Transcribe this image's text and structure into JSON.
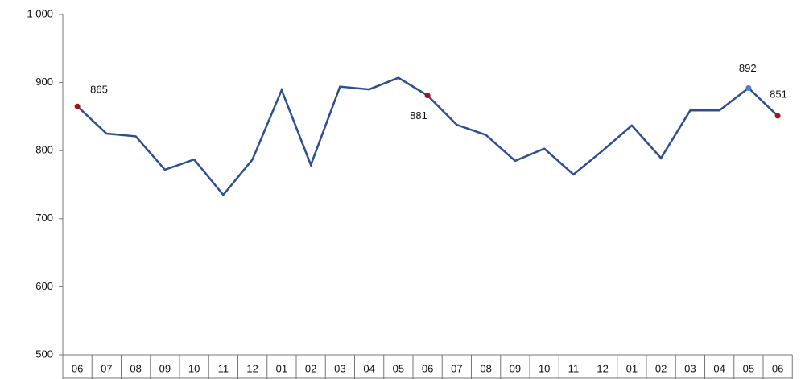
{
  "chart_data": {
    "type": "line",
    "categories": [
      "06",
      "07",
      "08",
      "09",
      "10",
      "11",
      "12",
      "01",
      "02",
      "03",
      "04",
      "05",
      "06",
      "07",
      "08",
      "09",
      "10",
      "11",
      "12",
      "01",
      "02",
      "03",
      "04",
      "05",
      "06"
    ],
    "values": [
      865,
      825,
      821,
      772,
      787,
      735,
      787,
      889,
      779,
      894,
      890,
      907,
      881,
      838,
      823,
      785,
      803,
      765,
      800,
      837,
      789,
      859,
      859,
      892,
      851
    ],
    "color": "#2e4f8f",
    "point_colors": [
      "#a0141e",
      null,
      null,
      null,
      null,
      null,
      null,
      null,
      null,
      null,
      null,
      null,
      "#a0141e",
      null,
      null,
      null,
      null,
      null,
      null,
      null,
      null,
      null,
      null,
      "#4f81bd",
      "#a0141e"
    ],
    "ylim": [
      500,
      1000
    ],
    "yticks": [
      500,
      600,
      700,
      800,
      900,
      {
        "value": 1000,
        "label": "1 000"
      }
    ],
    "grid": false
  }
}
